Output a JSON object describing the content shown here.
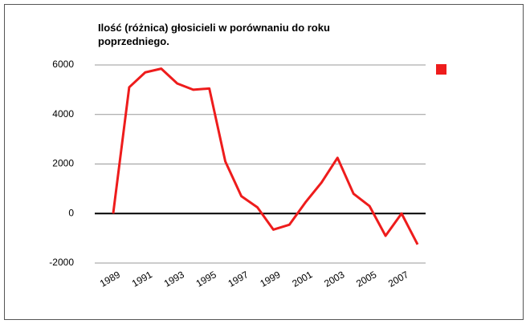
{
  "chart_data": {
    "type": "line",
    "title": "Ilość (różnica) głosicieli w porównaniu do roku poprzedniego.",
    "x": [
      1989,
      1990,
      1991,
      1992,
      1993,
      1994,
      1995,
      1996,
      1997,
      1998,
      1999,
      2000,
      2001,
      2002,
      2003,
      2004,
      2005,
      2006,
      2007,
      2008
    ],
    "series": [
      {
        "color": "#ee1c1c",
        "values": [
          0,
          5100,
          5700,
          5850,
          5250,
          5000,
          5050,
          2100,
          700,
          250,
          -650,
          -450,
          450,
          1250,
          2250,
          800,
          300,
          -900,
          0,
          -1250
        ]
      }
    ],
    "xlim": [
      1987.85,
      2008.5
    ],
    "xticks": [
      1989,
      1991,
      1993,
      1995,
      1997,
      1999,
      2001,
      2003,
      2005,
      2007
    ],
    "ylim": [
      -2000,
      6000
    ],
    "yticks": [
      -2000,
      0,
      2000,
      4000,
      6000
    ],
    "grid": true
  }
}
